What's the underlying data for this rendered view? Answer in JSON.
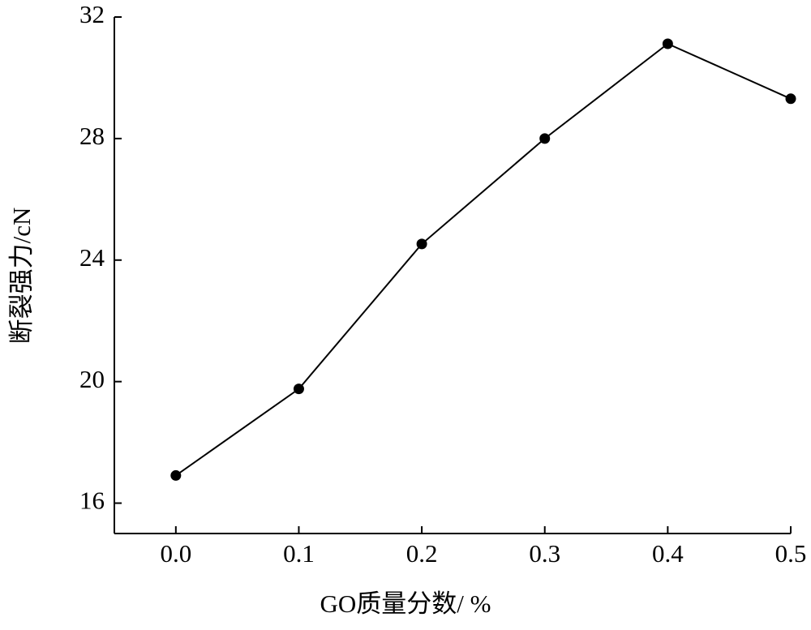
{
  "chart_data": {
    "type": "line",
    "x_label": "GO质量分数/ %",
    "y_label": "断裂强力/cN",
    "x": [
      0.0,
      0.1,
      0.2,
      0.3,
      0.4,
      0.5
    ],
    "series": [
      {
        "name": null,
        "color": "#000000",
        "values": [
          16.91,
          19.76,
          24.53,
          28.0,
          31.12,
          29.31
        ]
      }
    ],
    "xlim": [
      -0.05,
      0.5
    ],
    "ylim": [
      15,
      32
    ],
    "xticks": [
      {
        "value": 0.0,
        "label": "0.0"
      },
      {
        "value": 0.1,
        "label": "0.1"
      },
      {
        "value": 0.2,
        "label": "0.2"
      },
      {
        "value": 0.3,
        "label": "0.3"
      },
      {
        "value": 0.4,
        "label": "0.4"
      },
      {
        "value": 0.5,
        "label": "0.5"
      }
    ],
    "yticks": [
      16,
      20,
      24,
      28,
      32
    ],
    "grid": false
  }
}
